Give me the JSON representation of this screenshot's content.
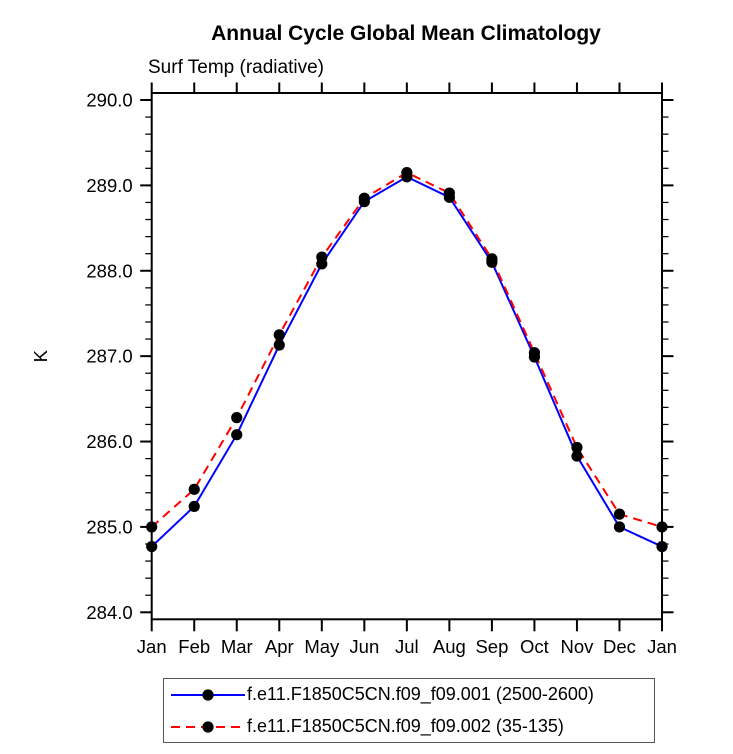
{
  "page": {
    "background": "#ffffff"
  },
  "chart_data": {
    "type": "line",
    "title": "Annual Cycle Global Mean Climatology",
    "subtitle": "Surf Temp (radiative)",
    "ylabel": "K",
    "x_categories": [
      "Jan",
      "Feb",
      "Mar",
      "Apr",
      "May",
      "Jun",
      "Jul",
      "Aug",
      "Sep",
      "Oct",
      "Nov",
      "Dec",
      "Jan"
    ],
    "ylim": [
      284.0,
      290.0
    ],
    "ytick_interval": 1.0,
    "yminor_interval": 0.2,
    "ytick_labels": [
      "284.0",
      "285.0",
      "286.0",
      "287.0",
      "288.0",
      "289.0",
      "290.0"
    ],
    "grid": false,
    "legend_position": "bottom",
    "frame_color": "#000000",
    "series": [
      {
        "name": "f.e11.F1850C5CN.f09_f09.001 (2500-2600)",
        "color": "#0000ff",
        "line_style": "solid",
        "marker": "filled-circle",
        "marker_color": "#000000",
        "values": [
          284.77,
          285.24,
          286.08,
          287.13,
          288.08,
          288.81,
          289.1,
          288.86,
          288.1,
          286.99,
          285.83,
          285.0,
          284.77
        ]
      },
      {
        "name": "f.e11.F1850C5CN.f09_f09.002 (35-135)",
        "color": "#ff0000",
        "line_style": "dashed",
        "marker": "filled-circle",
        "marker_color": "#000000",
        "values": [
          285.0,
          285.44,
          286.28,
          287.25,
          288.16,
          288.85,
          289.15,
          288.91,
          288.14,
          287.04,
          285.93,
          285.15,
          285.0
        ]
      }
    ]
  }
}
